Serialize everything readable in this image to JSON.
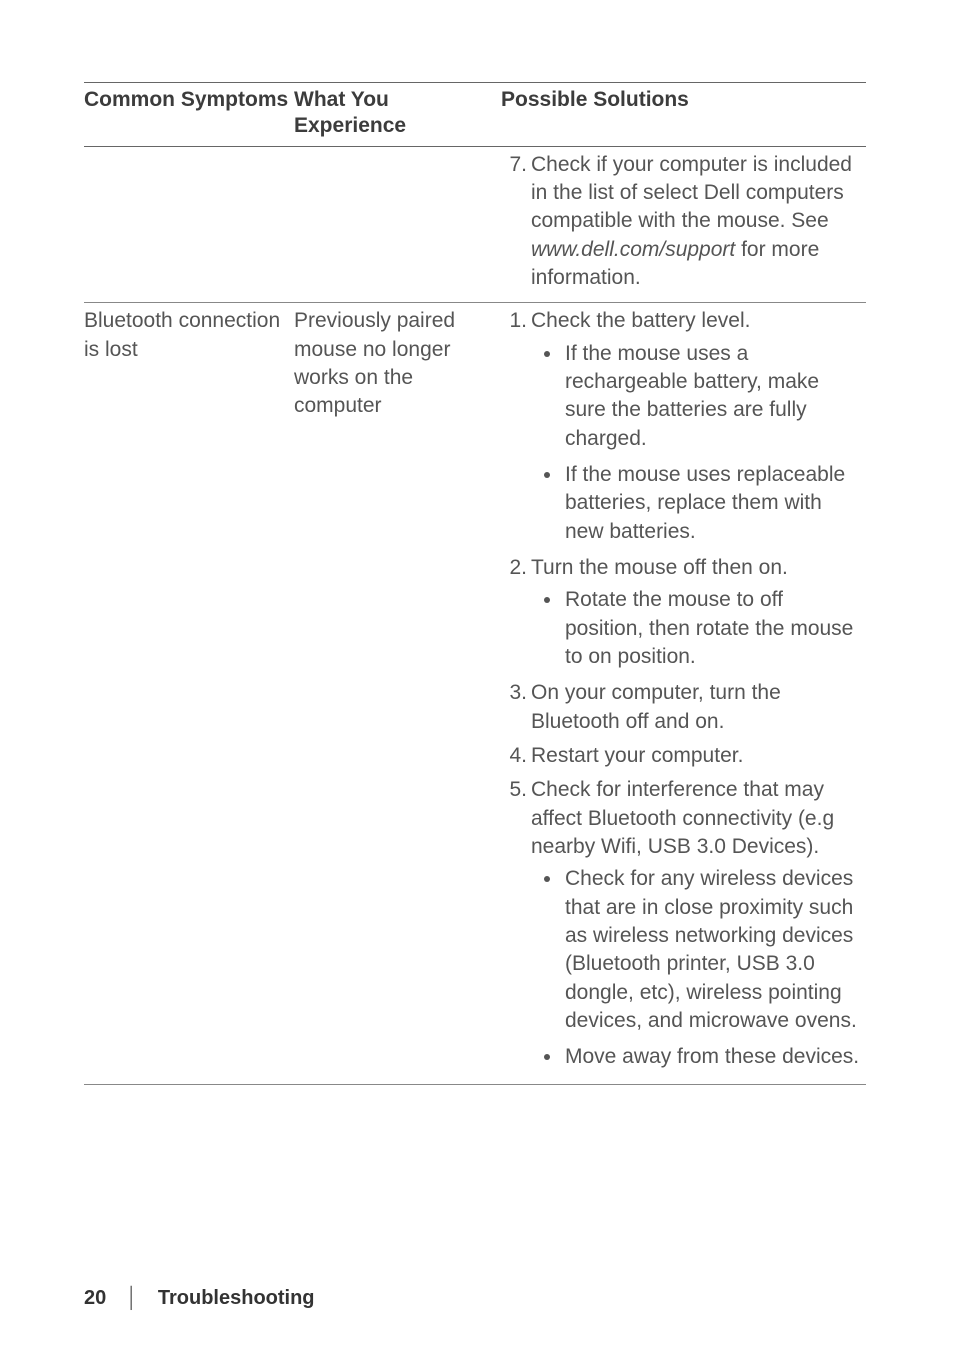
{
  "table": {
    "headers": {
      "col1": "Common Symptoms",
      "col2": "What You Experience",
      "col3": "Possible Solutions"
    },
    "row0": {
      "symptom": "",
      "experience": "",
      "s7_a": "Check if your computer is included in the list of select Dell computers compatible with the mouse. See ",
      "s7_i": "www.dell.com/support",
      "s7_b": " for more information."
    },
    "row1": {
      "symptom": "Bluetooth connection is lost",
      "experience": "Previously paired mouse no longer works on the computer",
      "s1": "Check the battery level.",
      "s1u1": "If the mouse uses a rechargeable battery, make sure the batteries are fully charged.",
      "s1u2": "If the mouse uses replaceable batteries, replace them with new batteries.",
      "s2": "Turn the mouse off then on.",
      "s2u1": "Rotate the mouse to off position, then rotate the mouse to on position.",
      "s3": "On your computer, turn the Bluetooth off and on.",
      "s4": "Restart your computer.",
      "s5": "Check for interference that may affect Bluetooth connectivity (e.g nearby Wifi, USB 3.0 Devices).",
      "s5u1": "Check for any wireless devices that are in close proximity such as wireless networking devices (Bluetooth printer, USB 3.0 dongle, etc), wireless pointing devices, and microwave ovens.",
      "s5u2": "Move away from these devices."
    }
  },
  "footer": {
    "page": "20",
    "sep": "│",
    "section": "Troubleshooting"
  },
  "colors": {
    "text": "#4a4a4a",
    "heading": "#3c3c3c",
    "rule": "#666666",
    "background": "#ffffff"
  }
}
